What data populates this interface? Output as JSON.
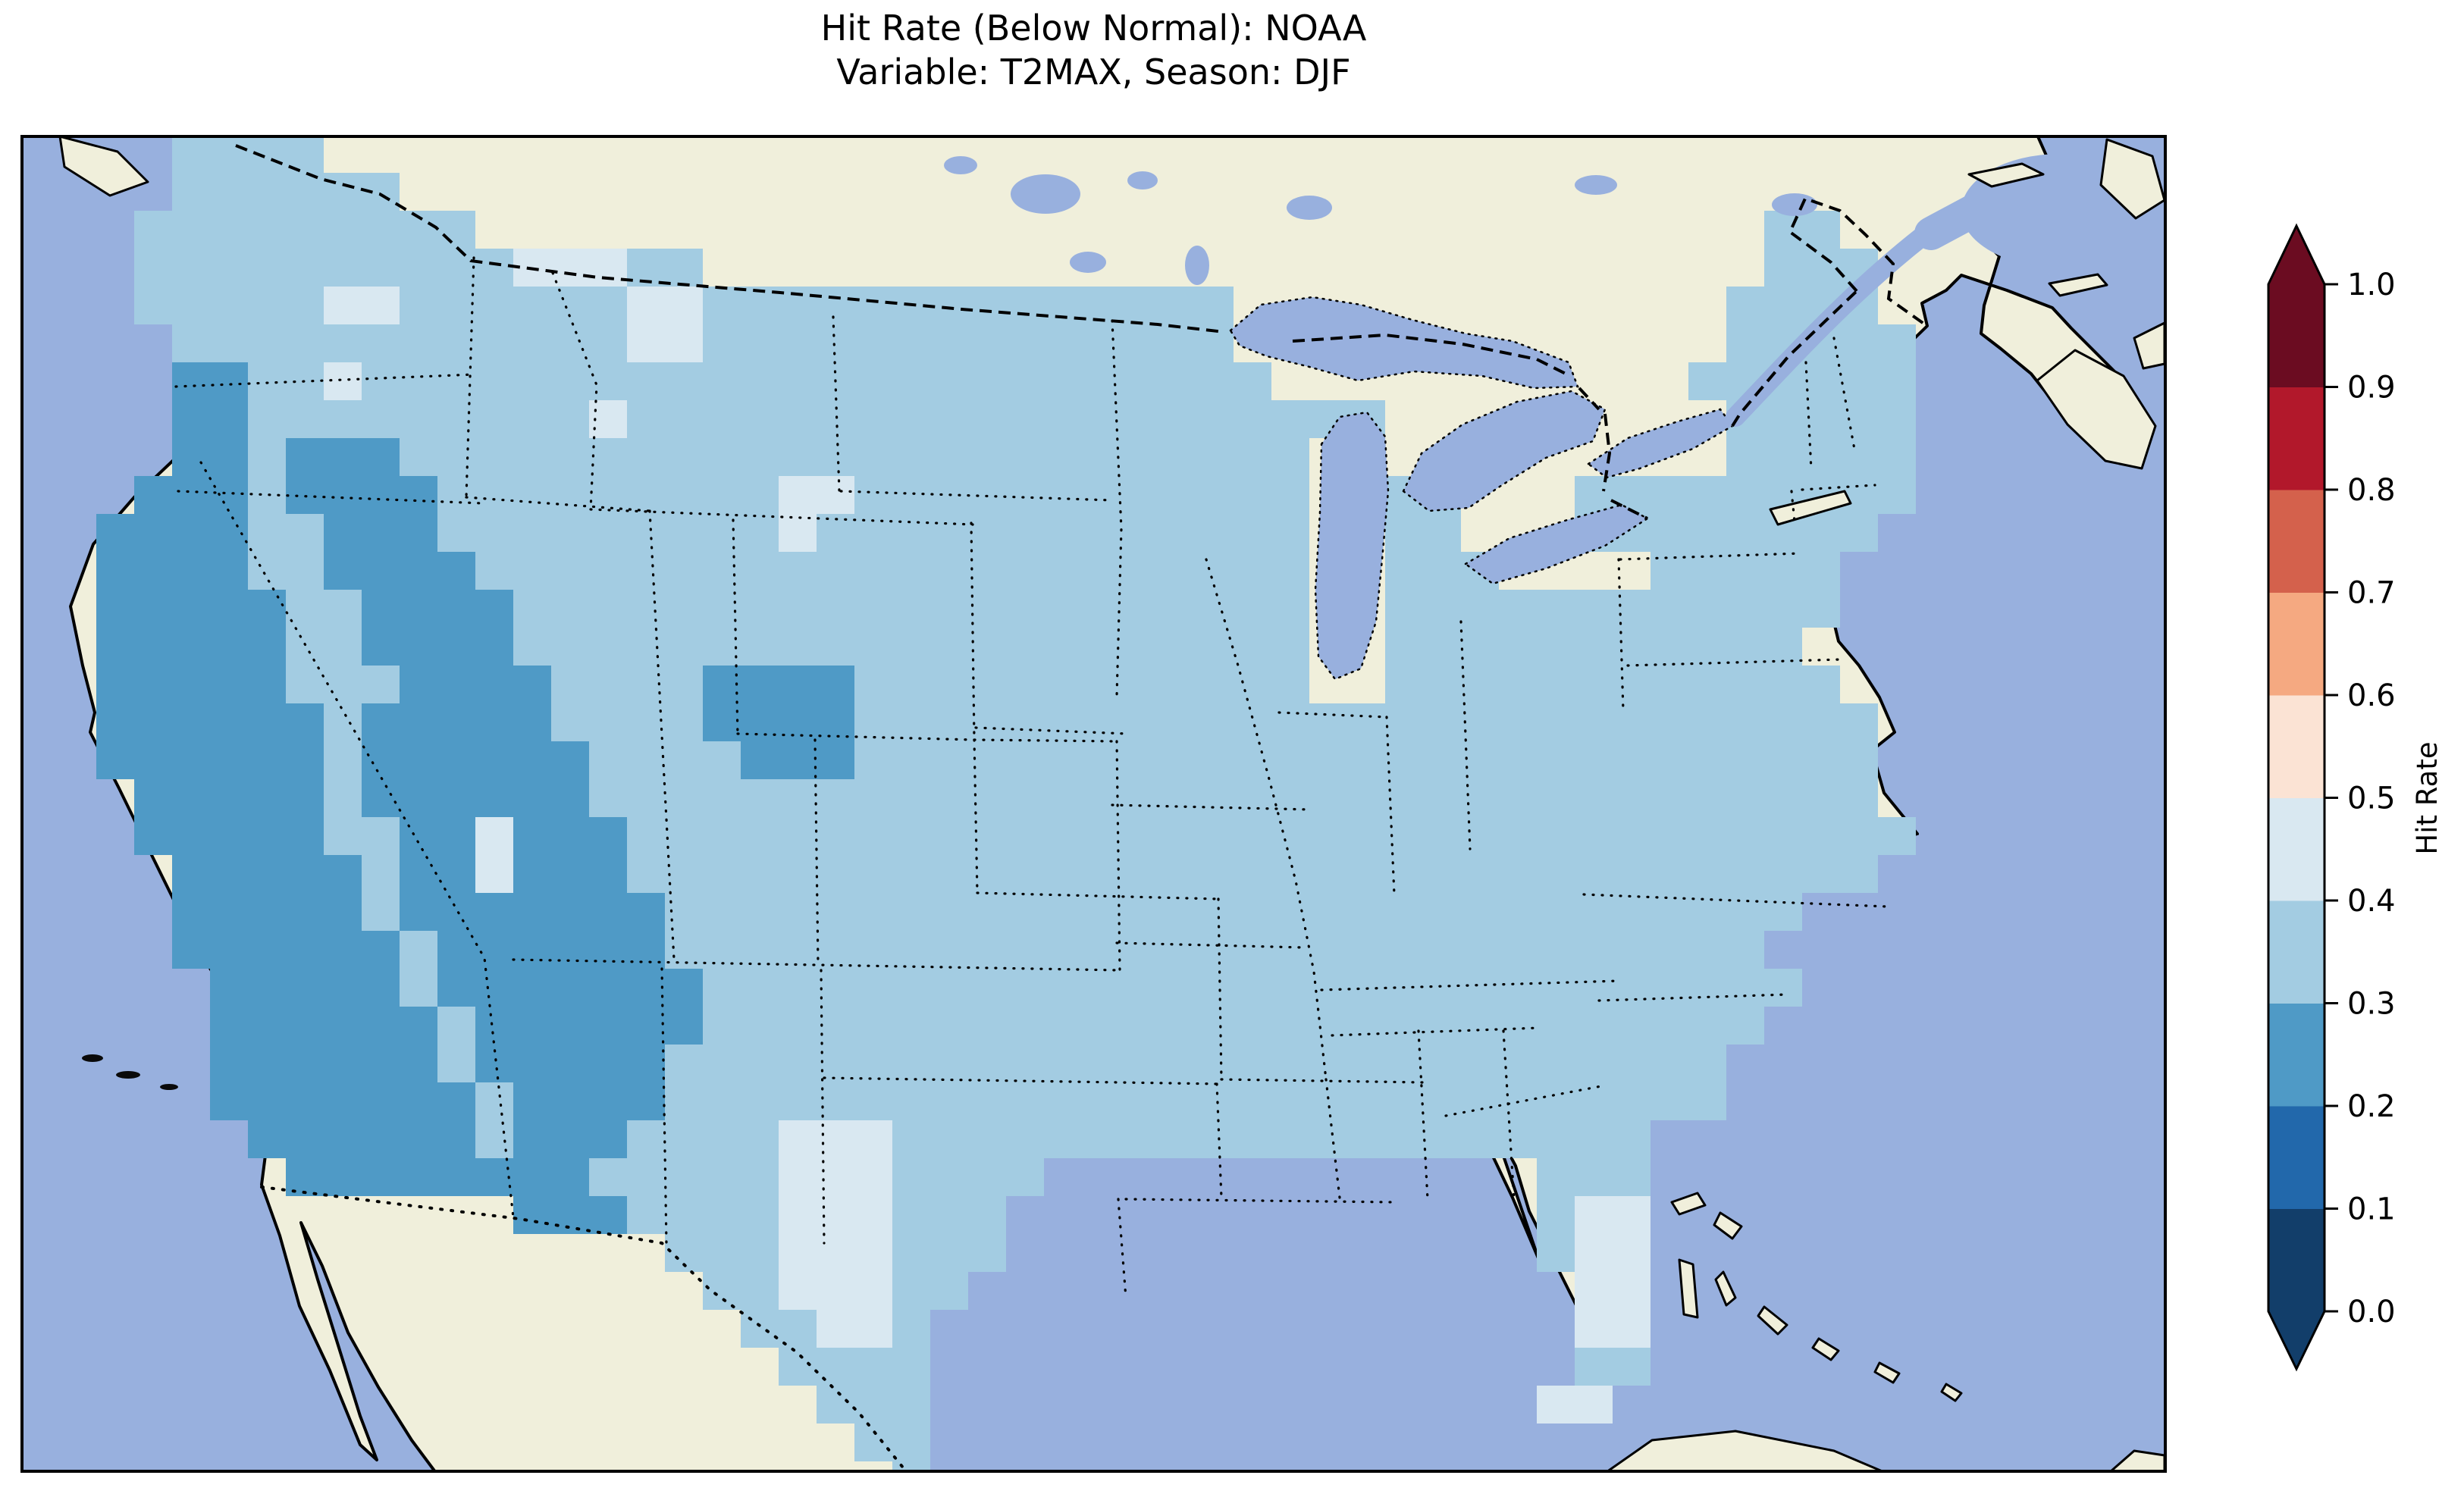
{
  "title": {
    "line1": "Hit Rate (Below Normal): NOAA",
    "line2": "Variable: T2MAX, Season: DJF"
  },
  "colorbar": {
    "label": "Hit Rate",
    "ticks": [
      "1.0",
      "0.9",
      "0.8",
      "0.7",
      "0.6",
      "0.5",
      "0.4",
      "0.3",
      "0.2",
      "0.1",
      "0.0"
    ],
    "extend": "both"
  },
  "map": {
    "ocean_color": "#98b0de",
    "land_color": "#f0efdb",
    "coastline_color": "#000000",
    "state_border_style": "dotted",
    "country_border_style": "dashed"
  },
  "chart_data": {
    "type": "heatmap",
    "subtype": "choropleth-map",
    "title": "Hit Rate (Below Normal): NOAA",
    "subtitle": "Variable: T2MAX, Season: DJF",
    "metric": "Hit Rate (Below Normal)",
    "source": "NOAA",
    "variable": "T2MAX",
    "season": "DJF",
    "region": "Contiguous United States",
    "legend_position": "right",
    "colorbar_label": "Hit Rate",
    "value_range": [
      0.0,
      1.0
    ],
    "bins": [
      {
        "range": "0.0-0.1",
        "color": "#123e6a"
      },
      {
        "range": "0.1-0.2",
        "color": "#2268ab"
      },
      {
        "range": "0.2-0.3",
        "color": "#4f9ac6"
      },
      {
        "range": "0.3-0.4",
        "color": "#a3cce2"
      },
      {
        "range": "0.4-0.5",
        "color": "#d9e8f1"
      },
      {
        "range": "0.5-0.6",
        "color": "#fbe3d4"
      },
      {
        "range": "0.6-0.7",
        "color": "#f5a981"
      },
      {
        "range": "0.7-0.8",
        "color": "#d4614c"
      },
      {
        "range": "0.8-0.9",
        "color": "#b2182b"
      },
      {
        "range": "0.9-1.0",
        "color": "#6b0c21"
      }
    ],
    "dominant_value_range": "0.3-0.4",
    "notable_regions": [
      {
        "area": "California, Great Basin, Arizona, New Mexico, SW Colorado, Utah",
        "value_range": "0.2-0.3"
      },
      {
        "area": "Most of CONUS (Plains, Midwest, South, East)",
        "value_range": "0.3-0.4"
      },
      {
        "area": "Northern/central Montana, western South Dakota, south Texas, south Florida",
        "value_range": "0.4-0.5"
      }
    ],
    "grid": {
      "cell_size_px": 50,
      "key": {
        "a": "0.3-0.4",
        "b": "0.2-0.3",
        "c": "0.4-0.5"
      },
      "palette": {
        "a": "#a3cce2",
        "b": "#4f9ac6",
        "c": "#d9e8f1"
      },
      "rows": [
        "....aaaa.................................................",
        "....aaaaaa...............................................",
        "...aaaaaaaaa..................................aa.........",
        "...aaaaaaaaaacccaa............................aaa........",
        "...aaaaaccaaaaaaccaaaaaaaaaaaaaa.............aaaa........",
        "....aaaaaaaaaaaaccaaaaaaaaaaaaaa.............aaaaa.......",
        "....bbaacaaaaaaaaaaaaaaaaaaaaaaaa...........aaaaaa.......",
        "....bbaaaaaaaaacaaaaaaaaaaaaaaaaaaaa.........aaaaa.......",
        "....bbabbbaaaaaaaaaaaaaaaaaaaaaaaa...........aaaaa.......",
        "...bbbabbbbaaaaaaaaaccaaaaaaaaaaaa..aa...aaaaaaaaa.......",
        "..bbbbaabbbaaaaaaaaacaaaaaaaaaaaaa..aa...aaaaaaaa........",
        "..bbbbaabbbbaaaaaaaaaaaaaaaaaaaaaa..aaa....aaaaa.........",
        "..bbbbbaabbbbaaaaaaaaaaaaaaaaaaaaa..aaaaaaaaaaaa.........",
        "..bbbbbaabbbbaaaaaaaaaaaaaaaaaaaaa..aaaaaaaaaaa..........",
        "..bbbbbaaabbbbaaaabbbbaaaaaaaaaaaa..aaaaaaaaaaaa.........",
        "..bbbbbbabbbbbaaaabbbbaaaaaaaaaaaaaaaaaaaaaaaaaaa........",
        "..bbbbbbabbbbbbaaaabbbaaaaaaaaaaaaaaaaaaaaaaaaaaa........",
        "...bbbbbabbbbbbaaaaaaaaaaaaaaaaaaaaaaaaaaaaaaaaaa........",
        "...bbbbbaabbcbbbaaaaaaaaaaaaaaaaaaaaaaaaaaaaaaaaaa.......",
        "....bbbbbabbcbbbaaaaaaaaaaaaaaaaaaaaaaaaaaaaaaaaa........",
        "....bbbbbabbbbbbbaaaaaaaaaaaaaaaaaaaaaaaaaaaaaa.........",
        "....bbbbbbabbbbbbaaaaaaaaaaaaaaaaaaaaaaaaaaaaa..........",
        ".....bbbbbabbbbbbbaaaaaaaaaaaaaaaaaaaaaaaaaaaaa..........",
        ".....bbbbbbabbbbbbaaaaaaaaaaaaaaaaaaaaaaaaaaaa...........",
        ".....bbbbbbabbbbbaaaaaaaaaaaaaaaaaaaaaaaaaaaa............",
        ".....bbbbbbbabbbbaaaaaaaaaaaaaaaaaaaaaaaaaaaa............",
        "......bbbbbbabbbaaaacccaaaaaaaaaaaaaaaaaaaa..............",
        ".......bbbbbbbbaaaaacccaaaa.............aaa..............",
        ".............bbbaaaacccaaa..............acc..............",
        ".................aaacccaaa..............acc..............",
        "..................aacccaa................cc..............",
        "...................aacca.................cc..............",
        "....................aaaa.................aa..............",
        ".....................aaa................cc...............",
        "......................aa.................................",
        ".......................a................................."
      ]
    }
  }
}
